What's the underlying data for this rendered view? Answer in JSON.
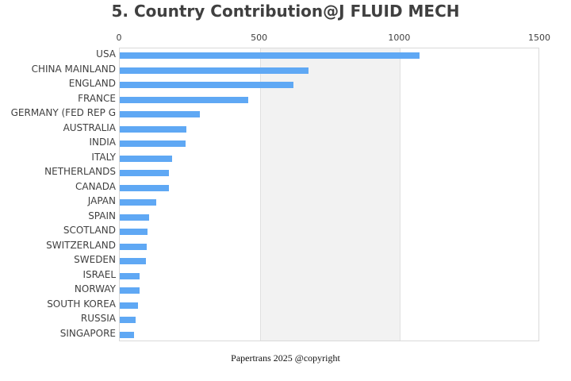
{
  "title": "5. Country Contribution@J FLUID MECH",
  "footer": "Papertrans 2025 @copyright",
  "colors": {
    "bar": "#5fa8f4",
    "band": "#f2f2f2",
    "grid": "#e0e0e0",
    "text": "#404040"
  },
  "axis": {
    "ticks": [
      "0",
      "500",
      "1000",
      "1500"
    ]
  },
  "chart_data": {
    "type": "bar",
    "orientation": "horizontal",
    "title": "5. Country Contribution@J FLUID MECH",
    "xlabel": "",
    "ylabel": "",
    "xlim": [
      0,
      1500
    ],
    "x_ticks": [
      0,
      500,
      1000,
      1500
    ],
    "x_axis_position": "top",
    "grid": true,
    "legend": null,
    "categories": [
      "USA",
      "CHINA MAINLAND",
      "ENGLAND",
      "FRANCE",
      "GERMANY (FED REP G",
      "AUSTRALIA",
      "INDIA",
      "ITALY",
      "NETHERLANDS",
      "CANADA",
      "JAPAN",
      "SPAIN",
      "SCOTLAND",
      "SWITZERLAND",
      "SWEDEN",
      "ISRAEL",
      "NORWAY",
      "SOUTH KOREA",
      "RUSSIA",
      "SINGAPORE"
    ],
    "values": [
      1070,
      674,
      620,
      458,
      286,
      238,
      235,
      187,
      175,
      175,
      130,
      105,
      99,
      96,
      93,
      71,
      71,
      65,
      57,
      51
    ]
  }
}
